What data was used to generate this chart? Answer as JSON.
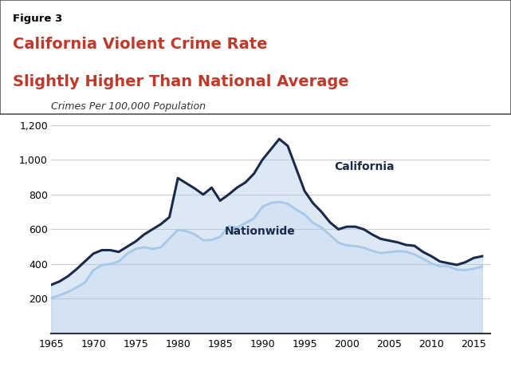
{
  "figure_label": "Figure 3",
  "title_line1": "California Violent Crime Rate",
  "title_line2": "Slightly Higher Than National Average",
  "title_color": "#C0392B",
  "figure_label_color": "#000000",
  "ylabel": "Crimes Per 100,000 Population",
  "ylim": [
    0,
    1200
  ],
  "yticks": [
    200,
    400,
    600,
    800,
    1000,
    1200
  ],
  "ytick_labels": [
    "200",
    "400",
    "600",
    "800",
    "1,000",
    "1,200"
  ],
  "xticks": [
    1965,
    1970,
    1975,
    1980,
    1985,
    1990,
    1995,
    2000,
    2005,
    2010,
    2015
  ],
  "xlim": [
    1965,
    2017
  ],
  "california_color": "#1B2A4A",
  "nationwide_color": "#A8C8E8",
  "california_label": "California",
  "nationwide_label": "Nationwide",
  "background_color": "#ffffff",
  "grid_color": "#cccccc",
  "years": [
    1965,
    1966,
    1967,
    1968,
    1969,
    1970,
    1971,
    1972,
    1973,
    1974,
    1975,
    1976,
    1977,
    1978,
    1979,
    1980,
    1981,
    1982,
    1983,
    1984,
    1985,
    1986,
    1987,
    1988,
    1989,
    1990,
    1991,
    1992,
    1993,
    1994,
    1995,
    1996,
    1997,
    1998,
    1999,
    2000,
    2001,
    2002,
    2003,
    2004,
    2005,
    2006,
    2007,
    2008,
    2009,
    2010,
    2011,
    2012,
    2013,
    2014,
    2015,
    2016
  ],
  "california": [
    280,
    300,
    330,
    370,
    415,
    460,
    480,
    480,
    470,
    500,
    530,
    570,
    600,
    630,
    670,
    895,
    865,
    835,
    800,
    840,
    765,
    800,
    840,
    870,
    920,
    1000,
    1060,
    1120,
    1080,
    950,
    820,
    750,
    700,
    640,
    600,
    615,
    615,
    600,
    570,
    545,
    535,
    525,
    510,
    505,
    470,
    445,
    415,
    405,
    395,
    410,
    435,
    445
  ],
  "nationwide": [
    205,
    220,
    240,
    265,
    295,
    365,
    395,
    400,
    415,
    460,
    487,
    497,
    487,
    497,
    548,
    597,
    590,
    571,
    537,
    539,
    557,
    617,
    610,
    637,
    663,
    730,
    752,
    758,
    747,
    714,
    685,
    637,
    610,
    567,
    523,
    507,
    504,
    494,
    476,
    463,
    469,
    474,
    472,
    455,
    431,
    404,
    387,
    387,
    368,
    366,
    373,
    386
  ]
}
